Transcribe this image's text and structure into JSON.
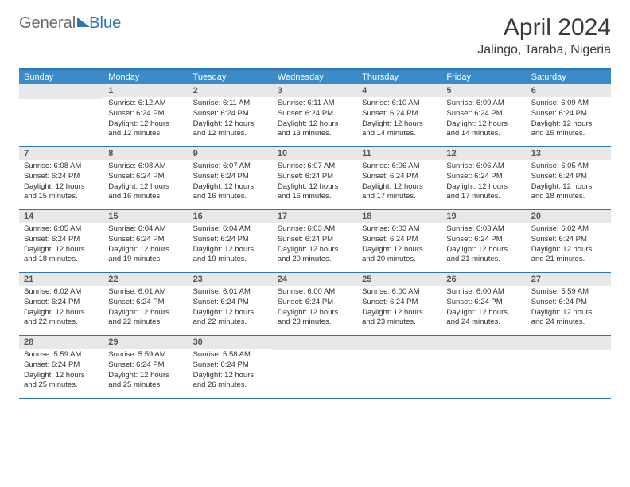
{
  "logo": {
    "part1": "General",
    "part2": "Blue"
  },
  "title": "April 2024",
  "location": "Jalingo, Taraba, Nigeria",
  "colors": {
    "brand": "#2e76b6",
    "header_bg": "#3b8bc9",
    "daynum_bg": "#e8e8e8",
    "text": "#333333",
    "title_text": "#3a3a3a"
  },
  "day_names": [
    "Sunday",
    "Monday",
    "Tuesday",
    "Wednesday",
    "Thursday",
    "Friday",
    "Saturday"
  ],
  "weeks": [
    [
      {
        "day": "",
        "sunrise": "",
        "sunset": "",
        "daylight": ""
      },
      {
        "day": "1",
        "sunrise": "Sunrise: 6:12 AM",
        "sunset": "Sunset: 6:24 PM",
        "daylight": "Daylight: 12 hours and 12 minutes."
      },
      {
        "day": "2",
        "sunrise": "Sunrise: 6:11 AM",
        "sunset": "Sunset: 6:24 PM",
        "daylight": "Daylight: 12 hours and 12 minutes."
      },
      {
        "day": "3",
        "sunrise": "Sunrise: 6:11 AM",
        "sunset": "Sunset: 6:24 PM",
        "daylight": "Daylight: 12 hours and 13 minutes."
      },
      {
        "day": "4",
        "sunrise": "Sunrise: 6:10 AM",
        "sunset": "Sunset: 6:24 PM",
        "daylight": "Daylight: 12 hours and 14 minutes."
      },
      {
        "day": "5",
        "sunrise": "Sunrise: 6:09 AM",
        "sunset": "Sunset: 6:24 PM",
        "daylight": "Daylight: 12 hours and 14 minutes."
      },
      {
        "day": "6",
        "sunrise": "Sunrise: 6:09 AM",
        "sunset": "Sunset: 6:24 PM",
        "daylight": "Daylight: 12 hours and 15 minutes."
      }
    ],
    [
      {
        "day": "7",
        "sunrise": "Sunrise: 6:08 AM",
        "sunset": "Sunset: 6:24 PM",
        "daylight": "Daylight: 12 hours and 15 minutes."
      },
      {
        "day": "8",
        "sunrise": "Sunrise: 6:08 AM",
        "sunset": "Sunset: 6:24 PM",
        "daylight": "Daylight: 12 hours and 16 minutes."
      },
      {
        "day": "9",
        "sunrise": "Sunrise: 6:07 AM",
        "sunset": "Sunset: 6:24 PM",
        "daylight": "Daylight: 12 hours and 16 minutes."
      },
      {
        "day": "10",
        "sunrise": "Sunrise: 6:07 AM",
        "sunset": "Sunset: 6:24 PM",
        "daylight": "Daylight: 12 hours and 16 minutes."
      },
      {
        "day": "11",
        "sunrise": "Sunrise: 6:06 AM",
        "sunset": "Sunset: 6:24 PM",
        "daylight": "Daylight: 12 hours and 17 minutes."
      },
      {
        "day": "12",
        "sunrise": "Sunrise: 6:06 AM",
        "sunset": "Sunset: 6:24 PM",
        "daylight": "Daylight: 12 hours and 17 minutes."
      },
      {
        "day": "13",
        "sunrise": "Sunrise: 6:05 AM",
        "sunset": "Sunset: 6:24 PM",
        "daylight": "Daylight: 12 hours and 18 minutes."
      }
    ],
    [
      {
        "day": "14",
        "sunrise": "Sunrise: 6:05 AM",
        "sunset": "Sunset: 6:24 PM",
        "daylight": "Daylight: 12 hours and 18 minutes."
      },
      {
        "day": "15",
        "sunrise": "Sunrise: 6:04 AM",
        "sunset": "Sunset: 6:24 PM",
        "daylight": "Daylight: 12 hours and 19 minutes."
      },
      {
        "day": "16",
        "sunrise": "Sunrise: 6:04 AM",
        "sunset": "Sunset: 6:24 PM",
        "daylight": "Daylight: 12 hours and 19 minutes."
      },
      {
        "day": "17",
        "sunrise": "Sunrise: 6:03 AM",
        "sunset": "Sunset: 6:24 PM",
        "daylight": "Daylight: 12 hours and 20 minutes."
      },
      {
        "day": "18",
        "sunrise": "Sunrise: 6:03 AM",
        "sunset": "Sunset: 6:24 PM",
        "daylight": "Daylight: 12 hours and 20 minutes."
      },
      {
        "day": "19",
        "sunrise": "Sunrise: 6:03 AM",
        "sunset": "Sunset: 6:24 PM",
        "daylight": "Daylight: 12 hours and 21 minutes."
      },
      {
        "day": "20",
        "sunrise": "Sunrise: 6:02 AM",
        "sunset": "Sunset: 6:24 PM",
        "daylight": "Daylight: 12 hours and 21 minutes."
      }
    ],
    [
      {
        "day": "21",
        "sunrise": "Sunrise: 6:02 AM",
        "sunset": "Sunset: 6:24 PM",
        "daylight": "Daylight: 12 hours and 22 minutes."
      },
      {
        "day": "22",
        "sunrise": "Sunrise: 6:01 AM",
        "sunset": "Sunset: 6:24 PM",
        "daylight": "Daylight: 12 hours and 22 minutes."
      },
      {
        "day": "23",
        "sunrise": "Sunrise: 6:01 AM",
        "sunset": "Sunset: 6:24 PM",
        "daylight": "Daylight: 12 hours and 22 minutes."
      },
      {
        "day": "24",
        "sunrise": "Sunrise: 6:00 AM",
        "sunset": "Sunset: 6:24 PM",
        "daylight": "Daylight: 12 hours and 23 minutes."
      },
      {
        "day": "25",
        "sunrise": "Sunrise: 6:00 AM",
        "sunset": "Sunset: 6:24 PM",
        "daylight": "Daylight: 12 hours and 23 minutes."
      },
      {
        "day": "26",
        "sunrise": "Sunrise: 6:00 AM",
        "sunset": "Sunset: 6:24 PM",
        "daylight": "Daylight: 12 hours and 24 minutes."
      },
      {
        "day": "27",
        "sunrise": "Sunrise: 5:59 AM",
        "sunset": "Sunset: 6:24 PM",
        "daylight": "Daylight: 12 hours and 24 minutes."
      }
    ],
    [
      {
        "day": "28",
        "sunrise": "Sunrise: 5:59 AM",
        "sunset": "Sunset: 6:24 PM",
        "daylight": "Daylight: 12 hours and 25 minutes."
      },
      {
        "day": "29",
        "sunrise": "Sunrise: 5:59 AM",
        "sunset": "Sunset: 6:24 PM",
        "daylight": "Daylight: 12 hours and 25 minutes."
      },
      {
        "day": "30",
        "sunrise": "Sunrise: 5:58 AM",
        "sunset": "Sunset: 6:24 PM",
        "daylight": "Daylight: 12 hours and 26 minutes."
      },
      {
        "day": "",
        "sunrise": "",
        "sunset": "",
        "daylight": ""
      },
      {
        "day": "",
        "sunrise": "",
        "sunset": "",
        "daylight": ""
      },
      {
        "day": "",
        "sunrise": "",
        "sunset": "",
        "daylight": ""
      },
      {
        "day": "",
        "sunrise": "",
        "sunset": "",
        "daylight": ""
      }
    ]
  ]
}
